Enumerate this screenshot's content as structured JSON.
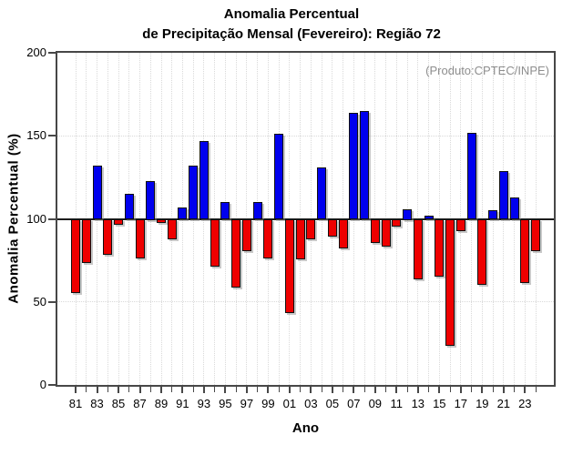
{
  "title": {
    "line1": "Anomalia Percentual",
    "line2": "de Precipitação Mensal (Fevereiro): Região 72"
  },
  "annotation": "(Produto:CPTEC/INPE)",
  "chart_data": {
    "type": "bar",
    "title": "Anomalia Percentual de Precipitação Mensal (Fevereiro): Região 72",
    "xlabel": "Ano",
    "ylabel": "Anomalia Percentual (%)",
    "ylim": [
      0,
      200
    ],
    "yticks": [
      0,
      50,
      100,
      150,
      200
    ],
    "hgrid": [
      50,
      150
    ],
    "baseline": 100,
    "xtick_label_step": 2,
    "legend": "none",
    "grid": "dotted light-gray; vertical line at every year, horizontal at 50 and 150; solid black line at 100",
    "colors": {
      "above_baseline": "#0000ee",
      "below_baseline": "#ee0000",
      "axis_box": "#474747",
      "annotation_gray": "#8e8e8e"
    },
    "categories": [
      "81",
      "82",
      "83",
      "84",
      "85",
      "86",
      "87",
      "88",
      "89",
      "90",
      "91",
      "92",
      "93",
      "94",
      "95",
      "96",
      "97",
      "98",
      "99",
      "00",
      "01",
      "02",
      "03",
      "04",
      "05",
      "06",
      "07",
      "08",
      "09",
      "10",
      "11",
      "12",
      "13",
      "14",
      "15",
      "16",
      "17",
      "18",
      "19",
      "20",
      "21",
      "22",
      "23",
      "24"
    ],
    "values": [
      56,
      74,
      132,
      79,
      97,
      115,
      77,
      123,
      98,
      88,
      107,
      132,
      147,
      72,
      110,
      59,
      81,
      110,
      77,
      151,
      44,
      76,
      88,
      131,
      90,
      83,
      164,
      165,
      86,
      84,
      96,
      106,
      64,
      102,
      66,
      24,
      93,
      152,
      61,
      105,
      129,
      113,
      62,
      81
    ]
  }
}
